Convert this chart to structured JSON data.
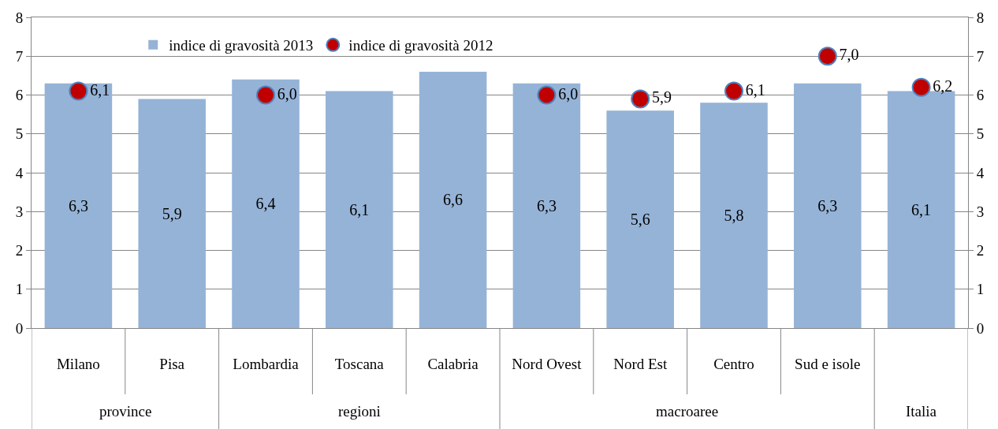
{
  "chart_data": {
    "type": "bar",
    "categories": [
      "Milano",
      "Pisa",
      "Lombardia",
      "Toscana",
      "Calabria",
      "Nord Ovest",
      "Nord Est",
      "Centro",
      "Sud e isole",
      null
    ],
    "series": [
      {
        "name": "indice di gravosità 2013",
        "color": "#95b3d7",
        "values": [
          6.3,
          5.9,
          6.4,
          6.1,
          6.6,
          6.3,
          5.6,
          5.8,
          6.3,
          6.1
        ],
        "value_labels": [
          "6,3",
          "5,9",
          "6,4",
          "6,1",
          "6,6",
          "6,3",
          "5,6",
          "5,8",
          "6,3",
          "6,1"
        ]
      },
      {
        "name": "indice di gravosità 2012",
        "type": "scatter",
        "color": "#c00000",
        "marker": "circle",
        "values": [
          6.1,
          null,
          6.0,
          null,
          null,
          6.0,
          5.9,
          6.1,
          7.0,
          6.2
        ],
        "value_labels": [
          "6,1",
          null,
          "6,0",
          null,
          null,
          "6,0",
          "5,9",
          "6,1",
          "7,0",
          "6,2"
        ]
      }
    ],
    "ylim": [
      0,
      8
    ],
    "yticks": [
      0,
      1,
      2,
      3,
      4,
      5,
      6,
      7,
      8
    ],
    "y2lim": [
      0,
      8
    ],
    "y2ticks": [
      0,
      1,
      2,
      3,
      4,
      5,
      6,
      7,
      8
    ],
    "grid": "y",
    "legend": "top",
    "annotations": [
      "province",
      "regioni",
      "macroaree",
      "Italia"
    ]
  }
}
